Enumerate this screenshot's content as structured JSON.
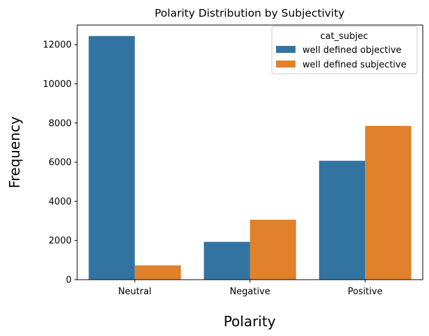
{
  "chart_data": {
    "type": "bar",
    "title": "Polarity Distribution by Subjectivity",
    "xlabel": "Polarity",
    "ylabel": "Frequency",
    "categories": [
      "Neutral",
      "Negative",
      "Positive"
    ],
    "series": [
      {
        "name": "well defined objective",
        "values": [
          12440,
          1930,
          6070
        ],
        "color": "#3274a1"
      },
      {
        "name": "well defined subjective",
        "values": [
          730,
          3060,
          7850
        ],
        "color": "#e1812c"
      }
    ],
    "ylim": [
      0,
      13000
    ],
    "yticks": [
      0,
      2000,
      4000,
      6000,
      8000,
      10000,
      12000
    ],
    "grid": false,
    "legend": {
      "title": "cat_subjec",
      "placement": "top-right"
    }
  }
}
